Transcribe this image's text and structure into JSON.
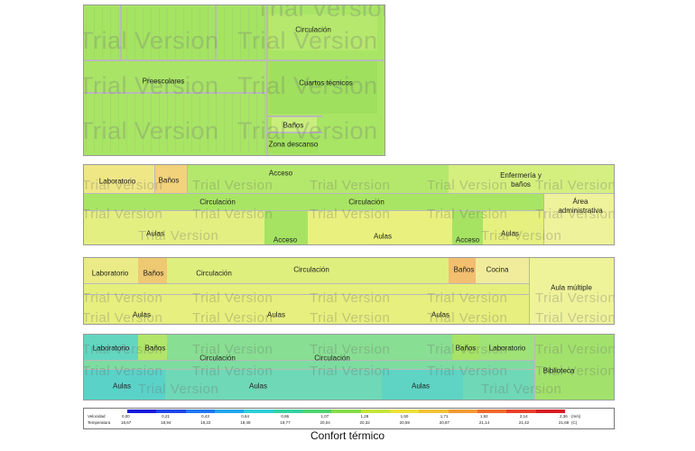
{
  "watermark": "Trial Version",
  "colors": {
    "green": "#99e55a",
    "light_green": "#c8ee7a",
    "yellow": "#e8f07a",
    "pale_yellow": "#eef29a",
    "orange": "#f2b766",
    "cyan": "#56d2c4",
    "teal": "#7ddca0"
  },
  "panel1": {
    "circulacion": "Circulación",
    "preescolares": "Preescolares",
    "cuartos_tecnicos": "Cuartos técnicos",
    "banos": "Baños",
    "zona_descanso": "Zona descanso"
  },
  "panel2": {
    "laboratorio": "Laboratorio",
    "banos": "Baños",
    "acceso_top": "Acceso",
    "enfermeria": "Enfermería y baños",
    "circulacion_left": "Circulación",
    "circulacion_center": "Circulación",
    "area_administrativa": "Área administrativa",
    "aulas_left": "Aulas",
    "acceso_mid": "Acceso",
    "aulas_mid": "Aulas",
    "acceso_right": "Acceso",
    "aulas_right": "Aulas"
  },
  "panel3": {
    "laboratorio": "Laboratorio",
    "banos_left": "Baños",
    "circulacion_left": "Circulación",
    "circulacion_center": "Circulación",
    "banos_right": "Baños",
    "cocina": "Cocina",
    "aula_multiple": "Aula múltiple",
    "aulas_left": "Aulas",
    "aulas_mid": "Aulas",
    "aulas_right": "Aulas"
  },
  "panel4": {
    "laboratorio_left": "Laboratorio",
    "banos_left": "Baños",
    "banos_right": "Baños",
    "laboratorio_right": "Laboratorio",
    "circulacion_left": "Circulación",
    "circulacion_center": "Circulación",
    "biblioteca": "Biblioteca",
    "aulas_1": "Aulas",
    "aulas_2": "Aulas",
    "aulas_3": "Aulas"
  },
  "legend": {
    "row1_label": "Velocidad",
    "row2_label": "Temperatura",
    "velocidad": [
      "0,00",
      "0,21",
      "0,43",
      "0,64",
      "0,86",
      "1,07",
      "1,28",
      "1,50",
      "1,71",
      "1,92",
      "2,14",
      "2,36"
    ],
    "temperatura": [
      "18,67",
      "18,94",
      "19,22",
      "19,49",
      "19,77",
      "20,04",
      "20,32",
      "20,59",
      "20,87",
      "21,14",
      "21,42",
      "21,69"
    ],
    "unit_velocidad": "(m/s)",
    "unit_temperatura": "(C)",
    "scale_colors": [
      "#1a1adc",
      "#1e46e6",
      "#1f78f0",
      "#22a8f0",
      "#2ecfd8",
      "#35d2a2",
      "#4ed46e",
      "#86dc48",
      "#c4e63c",
      "#eee23a",
      "#f5c23a",
      "#f49a34",
      "#f06a2c",
      "#e8402a",
      "#d81e24"
    ]
  },
  "caption": "Confort térmico"
}
